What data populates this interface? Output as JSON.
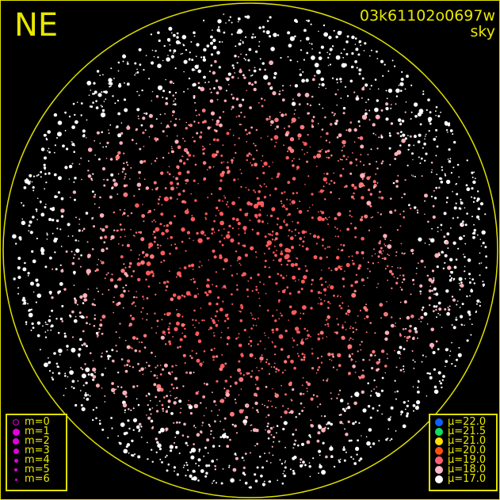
{
  "header": {
    "direction": "NE",
    "frame_id": "03k61102o0697w",
    "subtitle": "sky"
  },
  "colors": {
    "frame": "#e0e000",
    "horizon": "#e0e000"
  },
  "magnitude_legend": [
    {
      "label": "m=0",
      "hollow": true
    },
    {
      "label": "m=1"
    },
    {
      "label": "m=2"
    },
    {
      "label": "m=3"
    },
    {
      "label": "m=4"
    },
    {
      "label": "m=5"
    },
    {
      "label": "m=6"
    }
  ],
  "magnitude_legend_color": "#e000e0",
  "brightness_legend": [
    {
      "label": "μ=22.0",
      "color": "#1060ff"
    },
    {
      "label": "μ=21.5",
      "color": "#10e060"
    },
    {
      "label": "μ=21.0",
      "color": "#ffe000"
    },
    {
      "label": "μ=20.0",
      "color": "#ff5010"
    },
    {
      "label": "μ=19.0",
      "color": "#ff6070"
    },
    {
      "label": "μ=18.0",
      "color": "#ffb8c8"
    },
    {
      "label": "μ=17.0",
      "color": "#ffffff"
    }
  ]
}
